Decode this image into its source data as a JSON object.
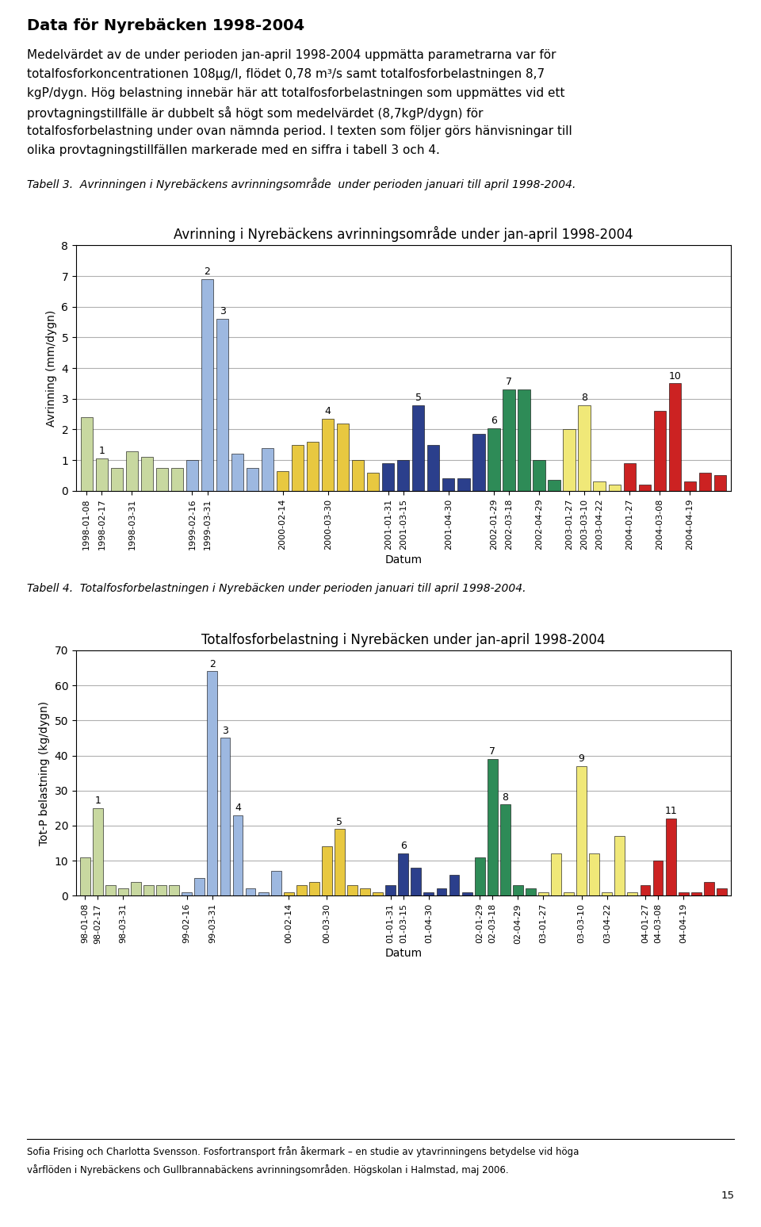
{
  "page_title": "Data för Nyrebäcken 1998-2004",
  "body_lines": [
    "Medelvärdet av de under perioden jan-april 1998-2004 uppmätta parametrarna var för",
    "totalfosforkoncentrationen 108μg/l, flödet 0,78 m³/s samt totalfosforbelastningen 8,7",
    "kgP/dygn. Hög belastning innebär här att totalfosforbelastningen som uppmättes vid ett",
    "provtagningstillfälle är dubbelt så högt som medelvärdet (8,7kgP/dygn) för",
    "totalfosforbelastning under ovan nämnda period. I texten som följer görs hänvisningar till",
    "olika provtagningstillfällen markerade med en siffra i tabell 3 och 4."
  ],
  "captions": [
    "Tabell 3.  Avrinningen i Nyrebäckens avrinningsområde  under perioden januari till april 1998-2004.",
    "Tabell 4.  Totalfosforbelastningen i Nyrebäcken under perioden januari till april 1998-2004."
  ],
  "footer_lines": [
    "Sofia Frising och Charlotta Svensson. Fosfortransport från åkermark – en studie av ytavrinningens betydelse vid höga",
    "vårflöden i Nyrebäckens och Gullbrannabäckens avrinningsområden. Högskolan i Halmstad, maj 2006."
  ],
  "page_number": "15",
  "chart_data": [
    {
      "type": "bar",
      "title": "Avrinning i Nyrebäckens avrinningsområde under jan-april 1998-2004",
      "xlabel": "Datum",
      "ylabel": "Avrinning (mm/dygn)",
      "categories": [
        "1998-01-08",
        "1998-02-17",
        null,
        "1998-03-31",
        null,
        null,
        null,
        "1999-02-16",
        "1999-03-31",
        null,
        null,
        null,
        null,
        "2000-02-14",
        null,
        null,
        "2000-03-30",
        null,
        null,
        null,
        "2001-01-31",
        "2001-03-15",
        null,
        null,
        "2001-04-30",
        null,
        null,
        "2002-01-29",
        "2002-03-18",
        null,
        "2002-04-29",
        null,
        "2003-01-27",
        "2003-03-10",
        "2003-04-22",
        null,
        "2004-01-27",
        null,
        "2004-03-08",
        null,
        "2004-04-19",
        null,
        null
      ],
      "values": [
        2.4,
        1.05,
        0.75,
        1.3,
        1.1,
        0.75,
        0.75,
        1.0,
        6.9,
        5.6,
        1.2,
        0.75,
        1.4,
        0.65,
        1.5,
        1.6,
        2.35,
        2.2,
        1.0,
        0.6,
        0.9,
        1.0,
        2.8,
        1.5,
        0.4,
        0.4,
        1.85,
        2.05,
        3.3,
        3.3,
        1.0,
        0.35,
        2.0,
        2.8,
        0.3,
        0.2,
        0.9,
        0.2,
        2.6,
        3.5,
        0.3,
        0.6,
        0.5
      ],
      "annotations": [
        null,
        "1",
        null,
        null,
        null,
        null,
        null,
        null,
        "2",
        "3",
        null,
        null,
        null,
        null,
        null,
        null,
        "4",
        null,
        null,
        null,
        null,
        null,
        "5",
        null,
        null,
        null,
        null,
        "6",
        "7",
        null,
        null,
        null,
        null,
        "8",
        null,
        null,
        null,
        null,
        null,
        "10",
        null,
        null,
        null
      ],
      "colors": [
        "#C8D8A0",
        "#C8D8A0",
        "#C8D8A0",
        "#C8D8A0",
        "#C8D8A0",
        "#C8D8A0",
        "#C8D8A0",
        "#9DB8E0",
        "#9DB8E0",
        "#9DB8E0",
        "#9DB8E0",
        "#9DB8E0",
        "#9DB8E0",
        "#E8C840",
        "#E8C840",
        "#E8C840",
        "#E8C840",
        "#E8C840",
        "#E8C840",
        "#E8C840",
        "#2B3F8C",
        "#2B3F8C",
        "#2B3F8C",
        "#2B3F8C",
        "#2B3F8C",
        "#2B3F8C",
        "#2B3F8C",
        "#2E8B57",
        "#2E8B57",
        "#2E8B57",
        "#2E8B57",
        "#2E8B57",
        "#F0E878",
        "#F0E878",
        "#F0E878",
        "#F0E878",
        "#CC2222",
        "#CC2222",
        "#CC2222",
        "#CC2222",
        "#CC2222",
        "#CC2222",
        "#CC2222"
      ],
      "ylim": [
        0,
        8
      ],
      "yticks": [
        0,
        1,
        2,
        3,
        4,
        5,
        6,
        7,
        8
      ],
      "grid": true
    },
    {
      "type": "bar",
      "title": "Totalfosforbelastning i Nyrebäcken under jan-april 1998-2004",
      "xlabel": "Datum",
      "ylabel": "Tot-P belastning (kg/dygn)",
      "categories": [
        "98-01-08",
        "98-02-17",
        null,
        "98-03-31",
        null,
        null,
        null,
        null,
        "99-02-16",
        null,
        "99-03-31",
        null,
        null,
        null,
        null,
        null,
        "00-02-14",
        null,
        null,
        "00-03-30",
        null,
        null,
        null,
        null,
        "01-01-31",
        "01-03-15",
        null,
        "01-04-30",
        null,
        null,
        null,
        "02-01-29",
        "02-03-18",
        null,
        "02-04-29",
        null,
        "03-01-27",
        null,
        null,
        "03-03-10",
        null,
        "03-04-22",
        null,
        null,
        "04-01-27",
        "04-03-08",
        null,
        "04-04-19",
        null,
        null,
        null
      ],
      "values": [
        11,
        25,
        3,
        2,
        4,
        3,
        3,
        3,
        1,
        5,
        64,
        45,
        23,
        2,
        1,
        7,
        1,
        3,
        4,
        14,
        19,
        3,
        2,
        1,
        3,
        12,
        8,
        1,
        2,
        6,
        1,
        11,
        39,
        26,
        3,
        2,
        1,
        12,
        1,
        37,
        12,
        1,
        17,
        1,
        3,
        10,
        22,
        1,
        1,
        4,
        2
      ],
      "annotations": [
        null,
        "1",
        null,
        null,
        null,
        null,
        null,
        null,
        null,
        null,
        "2",
        "3",
        "4",
        null,
        null,
        null,
        null,
        null,
        null,
        null,
        "5",
        null,
        null,
        null,
        null,
        "6",
        null,
        null,
        null,
        null,
        null,
        null,
        "7",
        "8",
        null,
        null,
        null,
        null,
        null,
        "9",
        null,
        null,
        null,
        null,
        null,
        null,
        "11",
        null,
        null,
        null,
        null
      ],
      "colors": [
        "#C8D8A0",
        "#C8D8A0",
        "#C8D8A0",
        "#C8D8A0",
        "#C8D8A0",
        "#C8D8A0",
        "#C8D8A0",
        "#C8D8A0",
        "#9DB8E0",
        "#9DB8E0",
        "#9DB8E0",
        "#9DB8E0",
        "#9DB8E0",
        "#9DB8E0",
        "#9DB8E0",
        "#9DB8E0",
        "#E8C840",
        "#E8C840",
        "#E8C840",
        "#E8C840",
        "#E8C840",
        "#E8C840",
        "#E8C840",
        "#E8C840",
        "#2B3F8C",
        "#2B3F8C",
        "#2B3F8C",
        "#2B3F8C",
        "#2B3F8C",
        "#2B3F8C",
        "#2B3F8C",
        "#2E8B57",
        "#2E8B57",
        "#2E8B57",
        "#2E8B57",
        "#2E8B57",
        "#F0E878",
        "#F0E878",
        "#F0E878",
        "#F0E878",
        "#F0E878",
        "#F0E878",
        "#F0E878",
        "#F0E878",
        "#CC2222",
        "#CC2222",
        "#CC2222",
        "#CC2222",
        "#CC2222",
        "#CC2222",
        "#CC2222"
      ],
      "ylim": [
        0,
        70
      ],
      "yticks": [
        0,
        10,
        20,
        30,
        40,
        50,
        60,
        70
      ],
      "grid": true
    }
  ]
}
